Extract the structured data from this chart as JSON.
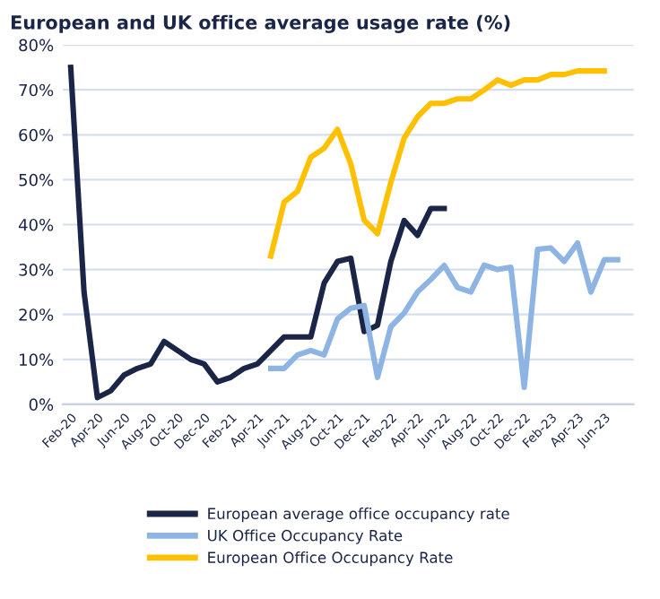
{
  "chart_data": {
    "type": "line",
    "title": "European and UK office average usage rate (%)",
    "categories": [
      "Feb-20",
      null,
      "Apr-20",
      null,
      "Jun-20",
      null,
      "Aug-20",
      null,
      "Oct-20",
      null,
      "Dec-20",
      null,
      "Feb-21",
      null,
      "Apr-21",
      null,
      "Jun-21",
      null,
      "Aug-21",
      null,
      "Oct-21",
      null,
      "Dec-21",
      null,
      "Feb-22",
      null,
      "Apr-22",
      null,
      "Jun-22",
      null,
      "Aug-22",
      null,
      "Oct-22",
      null,
      "Dec-22",
      null,
      "Feb-23",
      null,
      "Apr-23",
      null,
      "Jun-23",
      null
    ],
    "series": [
      {
        "name": "European average office occupancy rate",
        "color": "#1b2547",
        "values": [
          75,
          25,
          1.5,
          3,
          6.5,
          8,
          9,
          14,
          12,
          10,
          9,
          5,
          6,
          8,
          9,
          12,
          15,
          15,
          15,
          27,
          31.8,
          32.5,
          16.2,
          17.6,
          31.8,
          40.9,
          37.6,
          43.6,
          43.6,
          null,
          null,
          null,
          null,
          null,
          null,
          null,
          null,
          null,
          null,
          null,
          null,
          null
        ]
      },
      {
        "name": "UK Office Occupancy Rate",
        "color": "#8db4e2",
        "values": [
          null,
          null,
          null,
          null,
          null,
          null,
          null,
          null,
          null,
          null,
          null,
          null,
          null,
          null,
          null,
          8,
          8,
          11,
          12,
          11,
          19,
          21.4,
          22,
          6,
          17.3,
          20.3,
          25,
          27.8,
          30.9,
          26,
          25,
          31,
          30,
          30.5,
          3.8,
          34.5,
          34.8,
          31.8,
          35.9,
          25,
          32.2,
          32.2
        ]
      },
      {
        "name": "European Office Occupancy Rate",
        "color": "#ffc000",
        "values": [
          null,
          null,
          null,
          null,
          null,
          null,
          null,
          null,
          null,
          null,
          null,
          null,
          null,
          null,
          null,
          33,
          45,
          47.4,
          55,
          57,
          61.2,
          53.5,
          41,
          38,
          49.4,
          59.3,
          64,
          67,
          67,
          68,
          68,
          70,
          72.2,
          71,
          72.2,
          72.2,
          73.4,
          73.4,
          74.2,
          74.2,
          74.2,
          null
        ]
      }
    ],
    "ylim": [
      0,
      80
    ],
    "yticks": [
      {
        "value": 0,
        "label": "0%"
      },
      {
        "value": 10,
        "label": "10%"
      },
      {
        "value": 20,
        "label": "20%"
      },
      {
        "value": 30,
        "label": "30%"
      },
      {
        "value": 40,
        "label": "40%"
      },
      {
        "value": 50,
        "label": "50%"
      },
      {
        "value": 60,
        "label": "60%"
      },
      {
        "value": 70,
        "label": "70%"
      },
      {
        "value": 80,
        "label": "80%"
      }
    ],
    "grid": "y",
    "legend": "bottom",
    "marker": "none",
    "line_style": "solid"
  }
}
